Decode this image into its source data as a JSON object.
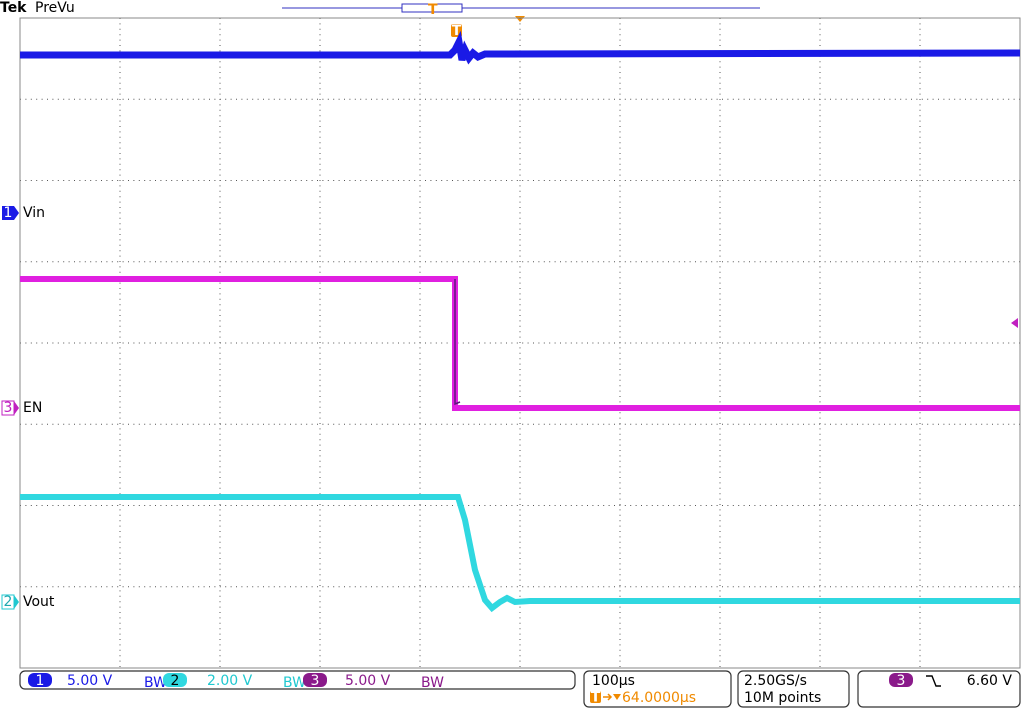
{
  "header": {
    "brand": "Tek",
    "mode": "PreVu",
    "trigger_marker": "T"
  },
  "channels": [
    {
      "number": "1",
      "label": "Vin",
      "scale": "5.00 V"
    },
    {
      "number": "2",
      "label": "Vout",
      "scale": "2.00 V"
    },
    {
      "number": "3",
      "label": "EN",
      "scale": "5.00 V"
    }
  ],
  "bandwidth_limit": "BW",
  "timebase": {
    "time_per_div": "100µs",
    "trigger_position": "64.0000µs",
    "sample_rate": "2.50GS/s",
    "record_length": "10M points"
  },
  "trigger": {
    "source": "3",
    "level": "6.60 V"
  }
}
